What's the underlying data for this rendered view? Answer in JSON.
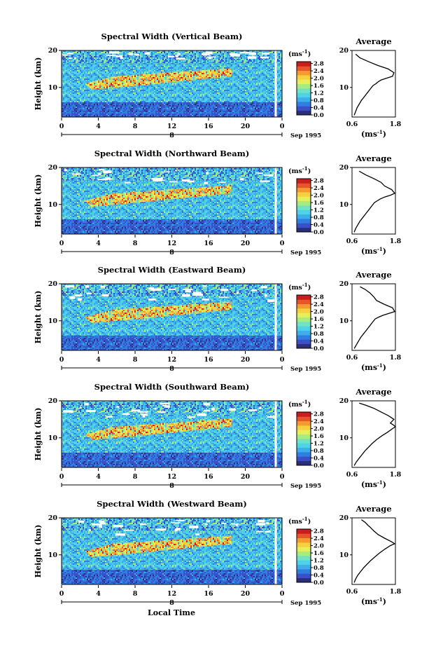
{
  "figure": {
    "xlabel": "Local Time"
  },
  "colorbar": {
    "unit_label": "(ms",
    "unit_exp": "-1",
    "unit_close": ")",
    "ticks": [
      "2.8",
      "2.4",
      "2.0",
      "1.6",
      "1.2",
      "0.8",
      "0.4",
      "0.0"
    ],
    "colors": [
      "#2b2f7a",
      "#3a4fc8",
      "#2f7fe0",
      "#3eaeea",
      "#4fd2e8",
      "#6fe3c4",
      "#a8ec7e",
      "#e6ef5a",
      "#f7d040",
      "#f59a30",
      "#e8552a",
      "#c81e1e"
    ]
  },
  "chart_data": [
    {
      "type": "heatmap",
      "title": "Spectral Width (Vertical Beam)",
      "ylabel": "Height (km)",
      "x_ticks": [
        "0",
        "4",
        "8",
        "12",
        "16",
        "20",
        "0"
      ],
      "x_mid": "8",
      "date_label": "Sep 1995",
      "y_ticks": [
        "20",
        "10"
      ],
      "ylim": [
        2,
        20
      ],
      "profile": {
        "title": "Average",
        "xlim": [
          0.6,
          1.8
        ],
        "x_ticks": [
          "0.6",
          "1.8"
        ],
        "xlabel": "(ms",
        "xlabel_exp": "-1",
        "xlabel_close": ")",
        "width": [
          0.66,
          0.7,
          0.74,
          0.8,
          0.86,
          0.94,
          1.02,
          1.1,
          1.18,
          1.26,
          1.32,
          1.4,
          1.55,
          1.72,
          1.76,
          1.6,
          1.3,
          1.05,
          0.82,
          0.7
        ],
        "height": [
          2.5,
          3.5,
          4.5,
          5.5,
          6.5,
          7.5,
          8.5,
          9.5,
          10.5,
          11.0,
          11.5,
          12.0,
          12.5,
          13.0,
          14.0,
          15.0,
          16.0,
          17.0,
          18.0,
          19.0
        ]
      }
    },
    {
      "type": "heatmap",
      "title": "Spectral Width (Northward Beam)",
      "ylabel": "Height (km)",
      "x_ticks": [
        "0",
        "4",
        "8",
        "12",
        "16",
        "20",
        "0"
      ],
      "x_mid": "8",
      "date_label": "Sep 1995",
      "y_ticks": [
        "20",
        "10"
      ],
      "ylim": [
        2,
        20
      ],
      "profile": {
        "title": "Average",
        "xlim": [
          0.6,
          1.8
        ],
        "x_ticks": [
          "0.6",
          "1.8"
        ],
        "xlabel": "(ms",
        "xlabel_exp": "-1",
        "xlabel_close": ")",
        "width": [
          0.66,
          0.7,
          0.76,
          0.82,
          0.9,
          0.98,
          1.06,
          1.14,
          1.22,
          1.3,
          1.38,
          1.5,
          1.66,
          1.78,
          1.7,
          1.5,
          1.4,
          1.2,
          0.98,
          0.8
        ],
        "height": [
          2.5,
          3.5,
          4.5,
          5.5,
          6.5,
          7.5,
          8.5,
          9.5,
          10.5,
          11.0,
          11.5,
          12.0,
          12.5,
          13.0,
          14.0,
          15.0,
          16.0,
          17.0,
          18.0,
          19.0
        ]
      }
    },
    {
      "type": "heatmap",
      "title": "Spectral Width (Eastward Beam)",
      "ylabel": "Height (km)",
      "x_ticks": [
        "0",
        "4",
        "8",
        "12",
        "16",
        "20",
        "0"
      ],
      "x_mid": "8",
      "date_label": "Sep 1995",
      "y_ticks": [
        "20",
        "10"
      ],
      "ylim": [
        2,
        20
      ],
      "profile": {
        "title": "Average",
        "xlim": [
          0.6,
          1.8
        ],
        "x_ticks": [
          "0.6",
          "1.8"
        ],
        "xlabel": "(ms",
        "xlabel_exp": "-1",
        "xlabel_close": ")",
        "width": [
          0.66,
          0.72,
          0.78,
          0.84,
          0.92,
          1.0,
          1.08,
          1.16,
          1.24,
          1.34,
          1.46,
          1.62,
          1.78,
          1.72,
          1.48,
          1.28,
          1.2,
          1.1,
          0.96,
          0.82
        ],
        "height": [
          2.5,
          3.5,
          4.5,
          5.5,
          6.5,
          7.5,
          8.5,
          9.5,
          10.5,
          11.0,
          11.5,
          12.0,
          12.5,
          13.5,
          14.5,
          15.5,
          16.5,
          17.5,
          18.5,
          19.2
        ]
      }
    },
    {
      "type": "heatmap",
      "title": "Spectral Width (Southward Beam)",
      "ylabel": "Height (km)",
      "x_ticks": [
        "0",
        "4",
        "8",
        "12",
        "16",
        "20",
        "0"
      ],
      "x_mid": "8",
      "date_label": "Sep 1995",
      "y_ticks": [
        "20",
        "10"
      ],
      "ylim": [
        2,
        20
      ],
      "profile": {
        "title": "Average",
        "xlim": [
          0.6,
          1.8
        ],
        "x_ticks": [
          "0.6",
          "1.8"
        ],
        "xlabel": "(ms",
        "xlabel_exp": "-1",
        "xlabel_close": ")",
        "width": [
          0.66,
          0.72,
          0.8,
          0.88,
          0.96,
          1.06,
          1.16,
          1.28,
          1.42,
          1.58,
          1.72,
          1.8,
          1.74,
          1.66,
          1.76,
          1.6,
          1.4,
          1.2,
          0.98,
          0.8
        ],
        "height": [
          2.5,
          3.5,
          4.5,
          5.5,
          6.5,
          7.5,
          8.5,
          9.5,
          10.5,
          11.5,
          12.5,
          13.0,
          13.5,
          14.0,
          15.0,
          16.0,
          17.0,
          18.0,
          18.8,
          19.4
        ]
      }
    },
    {
      "type": "heatmap",
      "title": "Spectral Width (Westward Beam)",
      "ylabel": "Height (km)",
      "x_ticks": [
        "0",
        "4",
        "8",
        "12",
        "16",
        "20",
        "0"
      ],
      "x_mid": "8",
      "date_label": "Sep 1995",
      "y_ticks": [
        "20",
        "10"
      ],
      "ylim": [
        2,
        20
      ],
      "profile": {
        "title": "Average",
        "xlim": [
          0.6,
          1.8
        ],
        "x_ticks": [
          "0.6",
          "1.8"
        ],
        "xlabel": "(ms",
        "xlabel_exp": "-1",
        "xlabel_close": ")",
        "width": [
          0.66,
          0.7,
          0.76,
          0.84,
          0.92,
          1.02,
          1.12,
          1.24,
          1.36,
          1.5,
          1.66,
          1.78,
          1.7,
          1.5,
          1.32,
          1.2,
          1.1,
          1.04,
          0.96,
          0.86
        ],
        "height": [
          2.5,
          3.5,
          4.5,
          5.5,
          6.5,
          7.5,
          8.5,
          9.5,
          10.5,
          11.5,
          12.5,
          13.0,
          13.5,
          14.5,
          15.5,
          16.5,
          17.5,
          18.0,
          18.8,
          19.5
        ]
      }
    }
  ]
}
